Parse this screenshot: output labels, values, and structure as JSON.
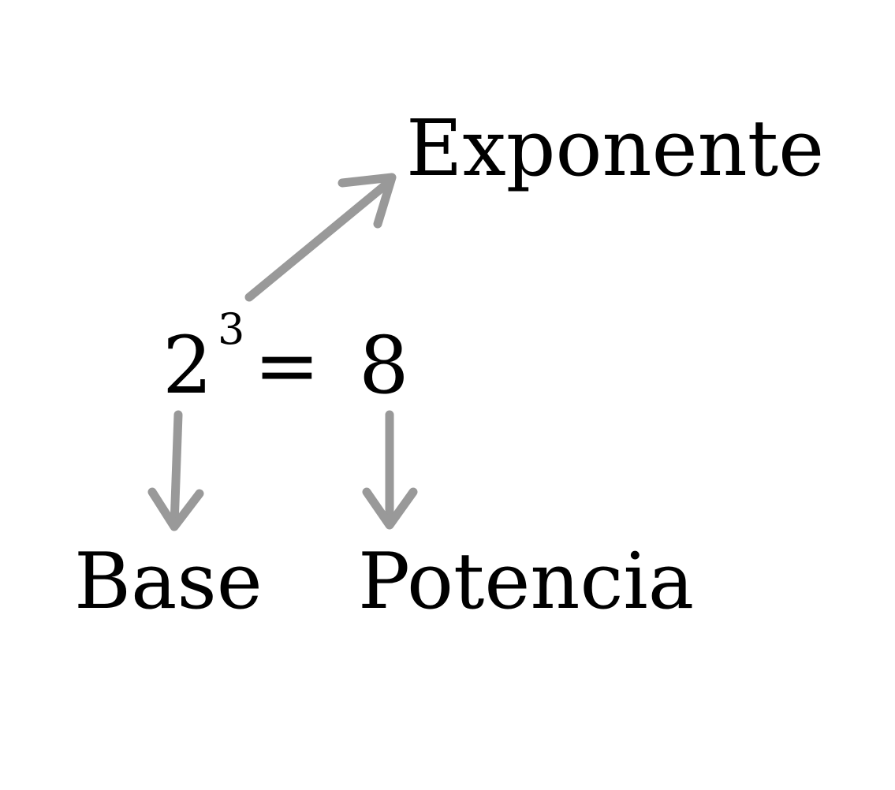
{
  "equation": {
    "base": "2",
    "exponent": "3",
    "equals": "=",
    "power": "8"
  },
  "labels": {
    "exponent": "Exponente",
    "base": "Base",
    "power": "Potencia"
  },
  "colors": {
    "text": "#000000",
    "arrow": "#999999",
    "background": "#ffffff"
  }
}
